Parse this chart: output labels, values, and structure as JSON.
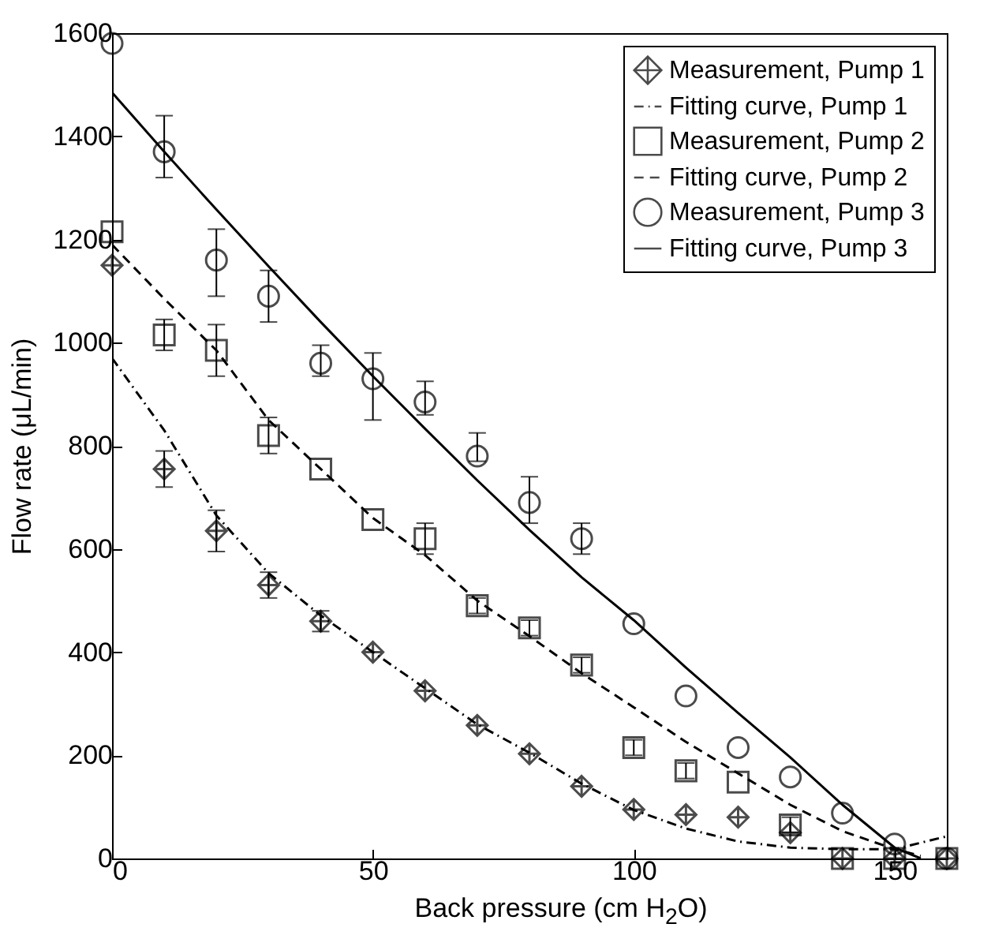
{
  "chart_data": {
    "type": "scatter",
    "xlabel": "Back pressure (cm H$_{2}$O)",
    "ylabel": "Flow rate (μL/min)",
    "xlim": [
      0,
      160
    ],
    "xticks": [
      0,
      50,
      100,
      150
    ],
    "ylim": [
      0,
      1600
    ],
    "yticks": [
      0,
      200,
      400,
      600,
      800,
      {
        "value": 1000,
        "label": "1000"
      },
      {
        "value": 1200,
        "label": "1200"
      },
      {
        "value": 1400,
        "label": "1400"
      },
      {
        "value": 1600,
        "label": "1600"
      }
    ],
    "grid": false,
    "legend": "top right",
    "series": [
      {
        "name": "Measurement, Pump 1",
        "type": "scatter",
        "marker": "cross",
        "color": "#000000",
        "x": [
          0,
          10,
          20,
          30,
          40,
          50,
          60,
          70,
          80,
          90,
          100,
          110,
          120,
          130,
          140,
          150,
          160
        ],
        "values": [
          1150,
          755,
          635,
          530,
          460,
          400,
          325,
          258,
          203,
          140,
          95,
          85,
          80,
          50,
          0,
          0,
          0
        ],
        "errors": [
          null,
          35,
          40,
          25,
          20,
          null,
          null,
          null,
          null,
          null,
          null,
          null,
          null,
          null,
          null,
          null,
          null
        ]
      },
      {
        "name": "Fitting curve, Pump 1",
        "type": "line",
        "line_style": "dashdot",
        "marker": "none",
        "color": "#000000",
        "x": [
          0,
          10,
          20,
          30,
          40,
          50,
          60,
          70,
          80,
          90,
          100,
          110,
          120,
          130,
          140,
          150,
          160
        ],
        "values": [
          970,
          830,
          665,
          553,
          471,
          400,
          330,
          260,
          205,
          145,
          94,
          58,
          33,
          21,
          18,
          18,
          43
        ]
      },
      {
        "name": "Measurement, Pump 2",
        "type": "scatter",
        "marker": "square",
        "color": "#000000",
        "x": [
          0,
          10,
          20,
          30,
          40,
          50,
          60,
          70,
          80,
          90,
          100,
          110,
          120,
          130,
          140,
          150,
          160
        ],
        "values": [
          1215,
          1015,
          985,
          820,
          755,
          657,
          620,
          490,
          447,
          375,
          215,
          170,
          148,
          65,
          0,
          0,
          0
        ],
        "errors": [
          null,
          30,
          50,
          35,
          null,
          null,
          30,
          15,
          15,
          15,
          15,
          15,
          null,
          15,
          null,
          null,
          null
        ]
      },
      {
        "name": "Fitting curve, Pump 2",
        "type": "line",
        "line_style": "dashed",
        "marker": "none",
        "color": "#000000",
        "x": [
          0,
          10,
          20,
          30,
          40,
          50,
          60,
          70,
          80,
          90,
          100,
          110,
          120,
          130,
          140,
          150,
          155
        ],
        "values": [
          1190,
          1085,
          985,
          850,
          755,
          660,
          588,
          500,
          431,
          359,
          293,
          226,
          165,
          104,
          53,
          18,
          5
        ]
      },
      {
        "name": "Measurement, Pump 3",
        "type": "scatter",
        "marker": "circle",
        "color": "#000000",
        "x": [
          0,
          10,
          20,
          30,
          40,
          50,
          60,
          70,
          80,
          90,
          100,
          110,
          120,
          130,
          140,
          150,
          160
        ],
        "values": [
          1580,
          1370,
          1160,
          1090,
          960,
          930,
          885,
          780,
          690,
          620,
          455,
          315,
          215,
          158,
          88,
          28,
          0
        ],
        "errors": [
          null,
          [
            1320,
            1440
          ],
          [
            1090,
            1220
          ],
          [
            1040,
            1140
          ],
          [
            935,
            995
          ],
          [
            850,
            980
          ],
          [
            860,
            925
          ],
          [
            770,
            825
          ],
          [
            650,
            740
          ],
          [
            590,
            650
          ],
          null,
          null,
          null,
          null,
          null,
          null,
          null
        ]
      },
      {
        "name": "Fitting curve, Pump 3",
        "type": "line",
        "line_style": "solid",
        "marker": "none",
        "color": "#000000",
        "x": [
          0,
          10,
          20,
          30,
          40,
          50,
          60,
          70,
          80,
          90,
          100,
          110,
          120,
          130,
          140,
          150,
          155
        ],
        "values": [
          1485,
          1370,
          1258,
          1148,
          1040,
          935,
          833,
          733,
          637,
          545,
          462,
          370,
          282,
          196,
          104,
          21,
          0
        ]
      }
    ]
  }
}
